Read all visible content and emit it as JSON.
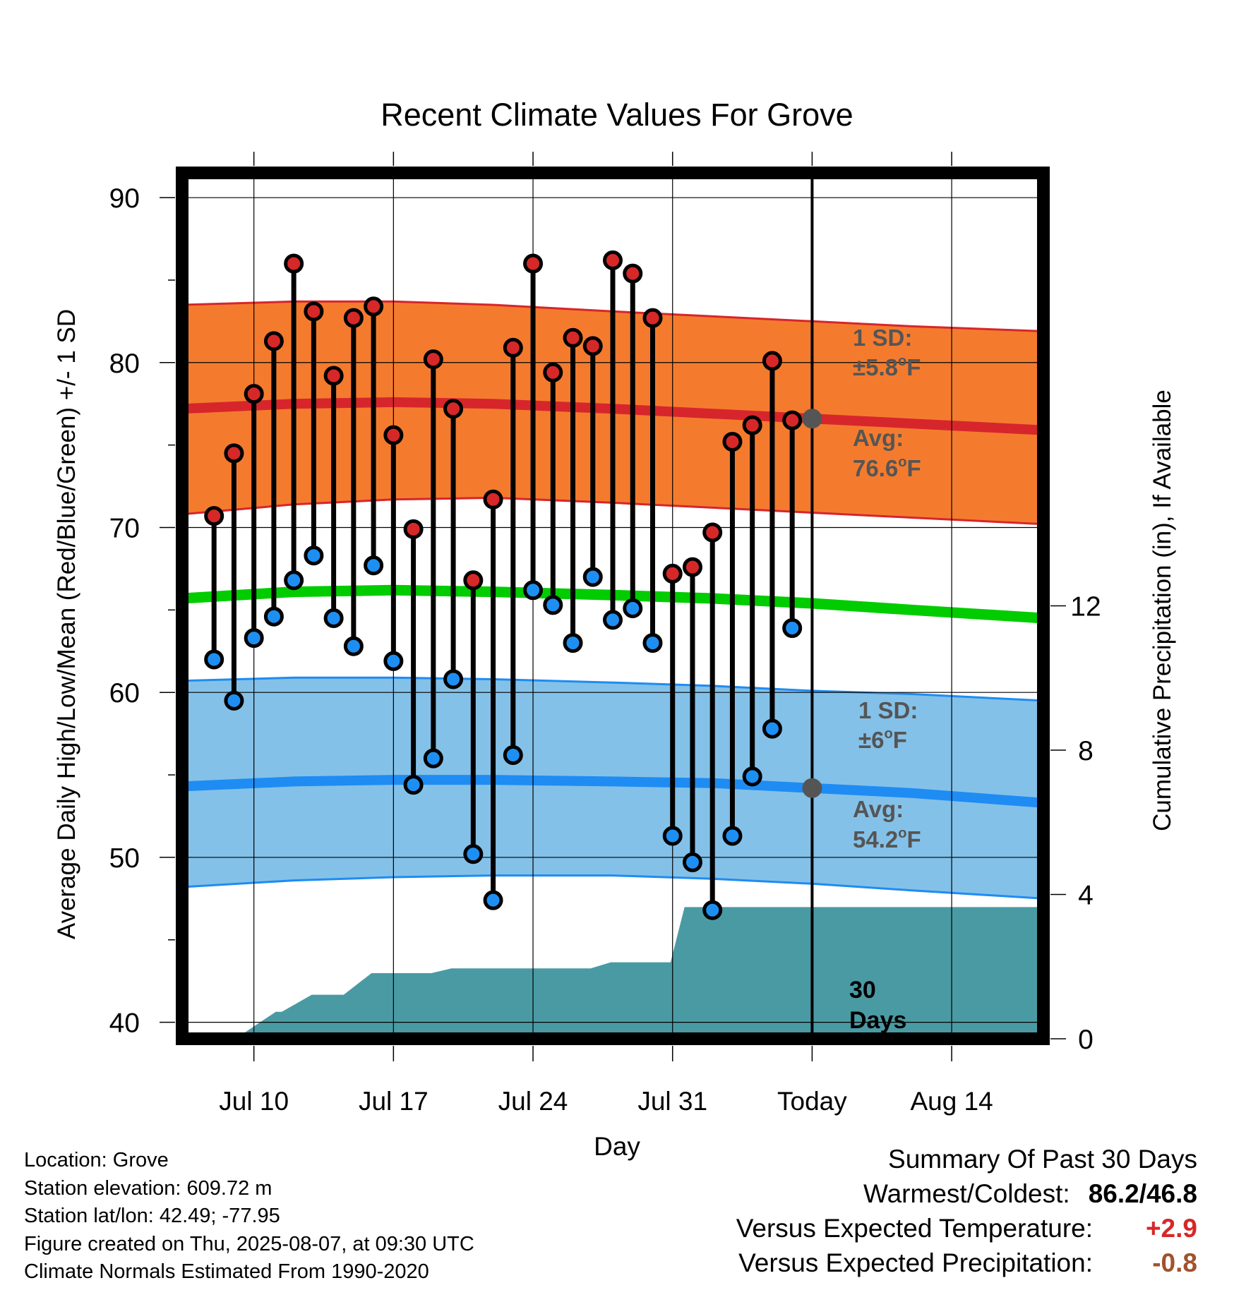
{
  "chart_data": {
    "type": "line",
    "title": "Recent Climate Values For Grove",
    "xlabel": "Day",
    "ylabel": "Average Daily High/Low/Mean (Red/Blue/Green) +/- 1 SD",
    "y2label": "Cumulative Precipitation (in), If Available",
    "ylim": [
      39,
      91.5
    ],
    "y_ticks": [
      40,
      50,
      60,
      70,
      80,
      90
    ],
    "y2lim": [
      0,
      24
    ],
    "y2_ticks": [
      0,
      4,
      8,
      12
    ],
    "xlim": [
      -1.6,
      41.6
    ],
    "x_ticks": [
      {
        "day": 2,
        "label": "Jul 10"
      },
      {
        "day": 9,
        "label": "Jul 17"
      },
      {
        "day": 16,
        "label": "Jul 24"
      },
      {
        "day": 23,
        "label": "Jul 31"
      },
      {
        "day": 30,
        "label": "Today"
      },
      {
        "day": 37,
        "label": "Aug 14"
      }
    ],
    "grid": true,
    "today_day": 30,
    "days_label": "30\nDays",
    "normals": {
      "x": [
        -1.6,
        4,
        9,
        14,
        20,
        25,
        30,
        35,
        41.6
      ],
      "high_avg": [
        77.2,
        77.5,
        77.6,
        77.5,
        77.2,
        76.9,
        76.6,
        76.3,
        75.9
      ],
      "high_upper": [
        83.5,
        83.7,
        83.7,
        83.5,
        83.1,
        82.8,
        82.5,
        82.2,
        81.9
      ],
      "high_lower": [
        70.8,
        71.4,
        71.7,
        71.8,
        71.5,
        71.2,
        70.9,
        70.6,
        70.2
      ],
      "mean": [
        65.7,
        66.1,
        66.2,
        66.1,
        65.9,
        65.7,
        65.4,
        65.0,
        64.5
      ],
      "low_avg": [
        54.3,
        54.6,
        54.7,
        54.7,
        54.6,
        54.5,
        54.2,
        53.9,
        53.3
      ],
      "low_upper": [
        60.7,
        60.9,
        60.9,
        60.8,
        60.6,
        60.4,
        60.1,
        59.9,
        59.5
      ],
      "low_lower": [
        48.2,
        48.6,
        48.8,
        48.9,
        48.9,
        48.7,
        48.4,
        48.0,
        47.5
      ]
    },
    "series": [
      {
        "name": "High",
        "x": [
          0,
          1,
          2,
          3,
          4,
          5,
          6,
          7,
          8,
          9,
          10,
          11,
          12,
          13,
          14,
          15,
          16,
          17,
          18,
          19,
          20,
          21,
          22,
          23,
          24,
          25,
          26,
          27,
          28,
          29
        ],
        "values": [
          70.7,
          74.5,
          78.1,
          81.3,
          86.0,
          83.1,
          79.2,
          82.7,
          83.4,
          75.6,
          69.9,
          80.2,
          77.2,
          66.8,
          71.7,
          80.9,
          86.0,
          79.4,
          81.5,
          81.0,
          86.2,
          85.4,
          82.7,
          67.2,
          67.6,
          69.7,
          75.2,
          76.2,
          80.1,
          76.5
        ]
      },
      {
        "name": "Low",
        "x": [
          0,
          1,
          2,
          3,
          4,
          5,
          6,
          7,
          8,
          9,
          10,
          11,
          12,
          13,
          14,
          15,
          16,
          17,
          18,
          19,
          20,
          21,
          22,
          23,
          24,
          25,
          26,
          27,
          28,
          29
        ],
        "values": [
          62.0,
          59.5,
          63.3,
          64.6,
          66.8,
          68.3,
          64.5,
          62.8,
          67.7,
          61.9,
          54.4,
          56.0,
          60.8,
          50.2,
          47.4,
          56.2,
          66.2,
          65.3,
          63.0,
          67.0,
          64.4,
          65.1,
          63.0,
          51.3,
          49.7,
          46.8,
          51.3,
          54.9,
          57.8,
          63.9
        ]
      },
      {
        "name": "Cumulative Precipitation",
        "x": [
          -1.6,
          -0.1,
          0.6,
          1.4,
          3.1,
          3.4,
          4.9,
          5.9,
          6.5,
          7.9,
          8.1,
          10.9,
          11.9,
          18.9,
          19.9,
          22.9,
          23.6,
          41.6
        ],
        "values": [
          0,
          0,
          0.12,
          0.12,
          0.75,
          0.75,
          1.22,
          1.22,
          1.22,
          1.82,
          1.82,
          1.82,
          1.95,
          1.95,
          2.12,
          2.12,
          3.65,
          3.65
        ]
      }
    ],
    "annotations": {
      "high_sd_line1": "1 SD:",
      "high_sd_line2": "±5.8",
      "high_avg_line1": "Avg:",
      "high_avg_line2": "76.6",
      "low_sd_line1": "1 SD:",
      "low_sd_line2": "±6",
      "low_avg_line1": "Avg:",
      "low_avg_line2": "54.2",
      "degree": "o",
      "unit": "F",
      "days_line1": "30",
      "days_line2": "Days"
    },
    "colors": {
      "high_band": "#f47b2e",
      "high_line": "#d6262c",
      "low_band": "#84c1e8",
      "low_line": "#1e8cf3",
      "mean_line": "#00cc00",
      "precip_fill": "#4a9aa4",
      "high_dot": "#d62828",
      "low_dot": "#1e8ff2",
      "annotation_text": "#555555",
      "marker_gray": "#555555"
    }
  },
  "footer": {
    "location": "Location: Grove",
    "elevation": "Station elevation: 609.72 m",
    "latlon": "Station lat/lon: 42.49; -77.95",
    "created": "Figure created on Thu, 2025-08-07, at 09:30 UTC",
    "normals": "Climate Normals Estimated From 1990-2020"
  },
  "summary": {
    "title": "Summary Of Past 30 Days",
    "warmest_label": "Warmest/Coldest:",
    "warmest_value": "86.2/46.8",
    "temp_label": "Versus Expected Temperature:",
    "temp_value": "+2.9",
    "temp_color": "#d62828",
    "precip_label": "Versus Expected Precipitation:",
    "precip_value": "-0.8",
    "precip_color": "#a0522d"
  }
}
